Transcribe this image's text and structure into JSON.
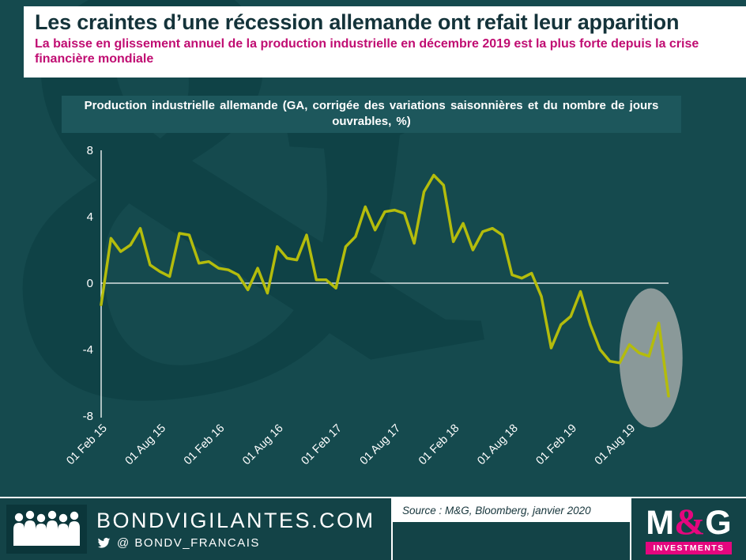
{
  "watermark": {
    "glyph": "&"
  },
  "header": {
    "title": "Les craintes d’une récession allemande ont refait leur apparition",
    "subtitle": "La baisse en glissement annuel de la production industrielle en décembre 2019 est la plus forte depuis la crise financière mondiale"
  },
  "chart_data": {
    "type": "line",
    "title": "Production industrielle allemande (GA, corrigée des variations saisonnières et du nombre de jours ouvrables, %)",
    "xlabel": "",
    "ylabel": "",
    "frequency": "monthly",
    "x_start": "Feb 2015",
    "x_end": "Dec 2019",
    "x_tick_labels": [
      "01 Feb 15",
      "01 Aug 15",
      "01 Feb 16",
      "01 Aug 16",
      "01 Feb 17",
      "01 Aug 17",
      "01 Feb 18",
      "01 Aug 18",
      "01 Feb 19",
      "01 Aug 19"
    ],
    "tick_interval": 6,
    "yticks": [
      8,
      4,
      0,
      -4,
      -8
    ],
    "ylim": [
      -8,
      8
    ],
    "grid": "zero-line-only",
    "legend": "none",
    "line_color": "#b4bc0c",
    "values": [
      -1.3,
      2.7,
      1.9,
      2.3,
      3.3,
      1.1,
      0.7,
      0.4,
      3.0,
      2.9,
      1.2,
      1.3,
      0.9,
      0.8,
      0.5,
      -0.4,
      0.9,
      -0.6,
      2.2,
      1.5,
      1.4,
      2.9,
      0.2,
      0.2,
      -0.3,
      2.2,
      2.8,
      4.6,
      3.2,
      4.3,
      4.4,
      4.2,
      2.4,
      5.5,
      6.5,
      5.9,
      2.5,
      3.6,
      2.0,
      3.1,
      3.3,
      2.9,
      0.5,
      0.3,
      0.6,
      -0.8,
      -3.9,
      -2.5,
      -2.0,
      -0.5,
      -2.5,
      -4.0,
      -4.7,
      -4.8,
      -3.7,
      -4.2,
      -4.4,
      -2.4,
      -6.8
    ],
    "annotation": {
      "shape": "ellipse-highlight",
      "note": "highlights the late-2019 drop",
      "center_index": 56.2,
      "center_value": -4.5,
      "radius_x_px": 40,
      "radius_y_px": 88,
      "color": "#9ba4a4",
      "opacity": 0.88
    }
  },
  "footer": {
    "site": "BONDVIGILANTES.COM",
    "twitter": "@ BONDV_FRANCAIS",
    "source": "Source : M&G, Bloomberg, janvier 2020",
    "logo": {
      "m": "M",
      "amp": "&",
      "g": "G",
      "investments": "INVESTMENTS"
    }
  },
  "colors": {
    "background": "#154a4e",
    "banner": "#ffffff",
    "subtitle_pink": "#c00d72",
    "chart_box": "#1d575c",
    "line": "#b4bc0c",
    "ellipse": "#9ba4a4",
    "brand_pink": "#e5067e"
  }
}
